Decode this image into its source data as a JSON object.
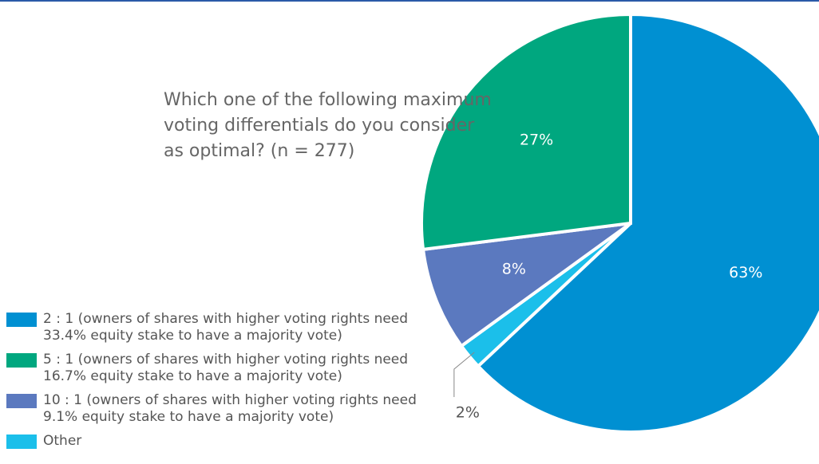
{
  "chart_data": {
    "type": "pie",
    "title": "Which one of the following maximum voting differentials do you consider as optimal? (n = 277)",
    "labels": [
      "2 : 1 (owners of shares with higher voting rights need 33.4% equity stake to have a majority vote)",
      "Other",
      "10 : 1 (owners of shares with higher voting rights need 9.1% equity stake to have a majority vote)",
      "5 : 1 (owners of shares with higher voting rights need 16.7% equity stake to have a majority vote)"
    ],
    "values": [
      63,
      2,
      8,
      27
    ],
    "value_labels": [
      "63%",
      "2%",
      "8%",
      "27%"
    ],
    "colors": [
      "#0090d2",
      "#1bbfea",
      "#5b79bf",
      "#00a77f"
    ],
    "legend_order": [
      0,
      3,
      2,
      1
    ]
  }
}
